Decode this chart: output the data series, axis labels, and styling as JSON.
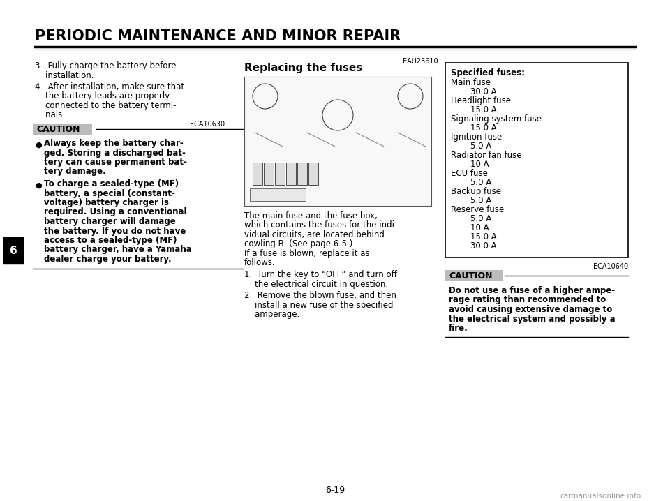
{
  "title": "PERIODIC MAINTENANCE AND MINOR REPAIR",
  "page_num": "6-19",
  "chapter_num": "6",
  "bg_color": "#ffffff",
  "step3_lines": [
    "3.  Fully charge the battery before",
    "    installation."
  ],
  "step4_lines": [
    "4.  After installation, make sure that",
    "    the battery leads are properly",
    "    connected to the battery termi-",
    "    nals."
  ],
  "eca_code1": "ECA10630",
  "caution1_label": "CAUTION",
  "caution1_bullet1_lines": [
    "Always keep the battery char-",
    "ged. Storing a discharged bat-",
    "tery can cause permanent bat-",
    "tery damage."
  ],
  "caution1_bullet2_lines": [
    "To charge a sealed-type (MF)",
    "battery, a special (constant-",
    "voltage) battery charger is",
    "required. Using a conventional",
    "battery charger will damage",
    "the battery. If you do not have",
    "access to a sealed-type (MF)",
    "battery charger, have a Yamaha",
    "dealer charge your battery."
  ],
  "eau_code": "EAU23610",
  "section_title": "Replacing the fuses",
  "body_lines": [
    "The main fuse and the fuse box,",
    "which contains the fuses for the indi-",
    "vidual circuits, are located behind",
    "cowling B. (See page 6-5.)",
    "If a fuse is blown, replace it as",
    "follows."
  ],
  "step1_lines": [
    "1.  Turn the key to “OFF” and turn off",
    "    the electrical circuit in question."
  ],
  "step2_lines": [
    "2.  Remove the blown fuse, and then",
    "    install a new fuse of the specified",
    "    amperage."
  ],
  "fuse_box_title": "Specified fuses:",
  "fuse_lines": [
    [
      "Main fuse",
      false
    ],
    [
      "30.0 A",
      true
    ],
    [
      "Headlight fuse",
      false
    ],
    [
      "15.0 A",
      true
    ],
    [
      "Signaling system fuse",
      false
    ],
    [
      "15.0 A",
      true
    ],
    [
      "Ignition fuse",
      false
    ],
    [
      "5.0 A",
      true
    ],
    [
      "Radiator fan fuse",
      false
    ],
    [
      "10 A",
      true
    ],
    [
      "ECU fuse",
      false
    ],
    [
      "5.0 A",
      true
    ],
    [
      "Backup fuse",
      false
    ],
    [
      "5.0 A",
      true
    ],
    [
      "Reserve fuse",
      false
    ],
    [
      "5.0 A",
      true
    ],
    [
      "10 A",
      true
    ],
    [
      "15.0 A",
      true
    ],
    [
      "30.0 A",
      true
    ]
  ],
  "eca_code2": "ECA10640",
  "caution2_label": "CAUTION",
  "caution2_lines": [
    "Do not use a fuse of a higher ampe-",
    "rage rating than recommended to",
    "avoid causing extensive damage to",
    "the electrical system and possibly a",
    "fire."
  ],
  "watermark": "carmanualsonline.info"
}
